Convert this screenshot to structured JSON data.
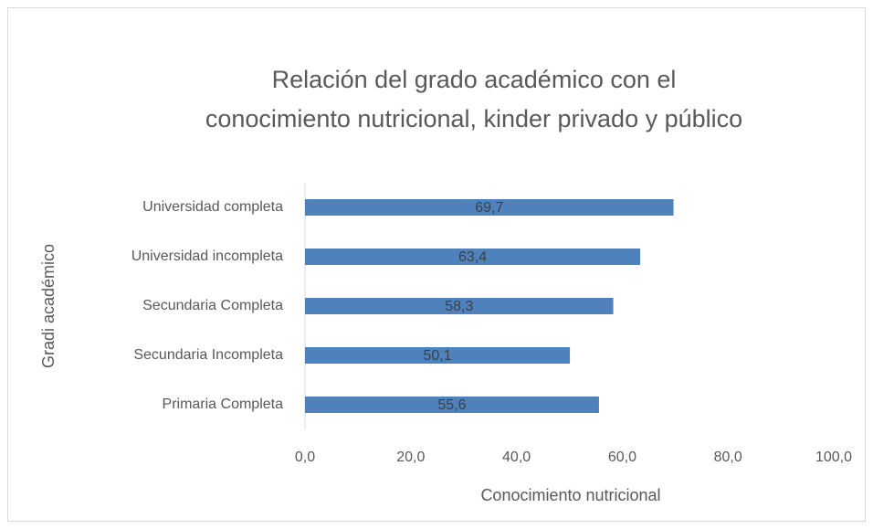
{
  "chart_data": {
    "type": "bar",
    "orientation": "horizontal",
    "title": "Relación del grado académico con el conocimiento nutricional, kinder privado y público",
    "x_label": "Conocimiento nutricional",
    "y_label": "Gradi académico",
    "categories": [
      "Universidad completa",
      "Universidad incompleta",
      "Secundaria Completa",
      "Secundaria Incompleta",
      "Primaria Completa"
    ],
    "values": [
      69.7,
      63.4,
      58.3,
      50.1,
      55.6
    ],
    "value_labels": [
      "69,7",
      "63,4",
      "58,3",
      "50,1",
      "55,6"
    ],
    "color": "#4f81bd",
    "xlim": [
      0,
      100
    ],
    "xticks": [
      {
        "value": 0,
        "label": "0,0"
      },
      {
        "value": 20,
        "label": "20,0"
      },
      {
        "value": 40,
        "label": "40,0"
      },
      {
        "value": 60,
        "label": "60,0"
      },
      {
        "value": 80,
        "label": "80,0"
      },
      {
        "value": 100,
        "label": "100,0"
      }
    ],
    "grid": false
  }
}
